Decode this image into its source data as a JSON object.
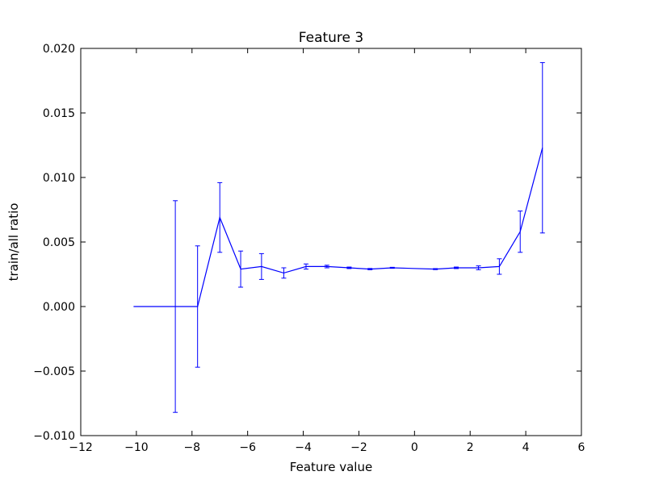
{
  "chart_data": {
    "type": "line",
    "title": "Feature 3",
    "xlabel": "Feature value",
    "ylabel": "train/all ratio",
    "xlim": [
      -12,
      6
    ],
    "ylim": [
      -0.01,
      0.02
    ],
    "xticks": [
      -12,
      -10,
      -8,
      -6,
      -4,
      -2,
      0,
      2,
      4,
      6
    ],
    "xtick_labels": [
      "−12",
      "−10",
      "−8",
      "−6",
      "−4",
      "−2",
      "0",
      "2",
      "4",
      "6"
    ],
    "yticks": [
      -0.01,
      -0.005,
      0.0,
      0.005,
      0.01,
      0.015,
      0.02
    ],
    "ytick_labels": [
      "−0.010",
      "−0.005",
      "0.000",
      "0.005",
      "0.010",
      "0.015",
      "0.020"
    ],
    "grid": false,
    "color": "#0000ff",
    "series": [
      {
        "x": [
          -10.1,
          -8.6,
          -7.8,
          -7.0,
          -6.25,
          -5.5,
          -4.7,
          -3.9,
          -3.15,
          -2.35,
          -1.6,
          -0.8,
          0.75,
          1.5,
          2.3,
          3.05,
          3.8,
          4.6
        ],
        "y": [
          0.0,
          0.0,
          0.0,
          0.0069,
          0.0029,
          0.0031,
          0.0026,
          0.0031,
          0.0031,
          0.003,
          0.0029,
          0.003,
          0.0029,
          0.003,
          0.003,
          0.0031,
          0.0058,
          0.0123
        ],
        "err": [
          0.0,
          0.0082,
          0.0047,
          0.0027,
          0.0014,
          0.001,
          0.0004,
          0.0002,
          0.0001,
          6e-05,
          5e-05,
          4e-05,
          4e-05,
          6e-05,
          0.00015,
          0.0006,
          0.0016,
          0.0066
        ]
      }
    ]
  }
}
